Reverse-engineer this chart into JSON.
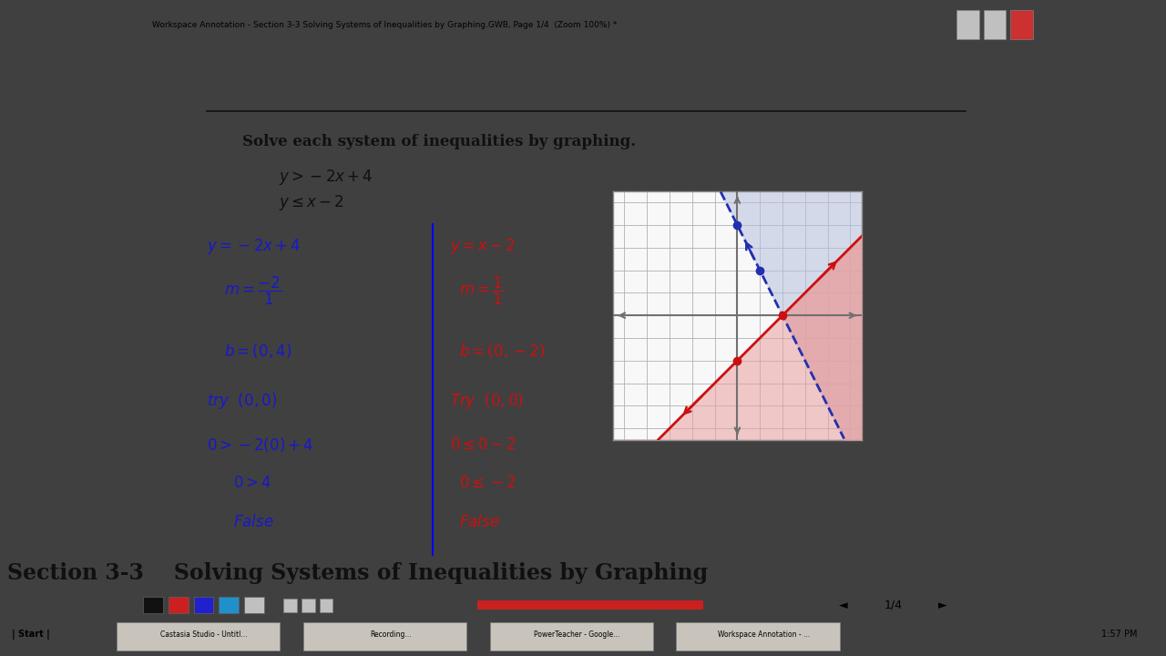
{
  "title": "Section 3-3    Solving Systems of Inequalities by Graphing",
  "subtitle": "Solve each system of inequalities by graphing.",
  "window_title": "Workspace Annotation - Section 3-3 Solving Systems of Inequalities by Graphing.GWB, Page 1/4  (Zoom 100%) *",
  "bg_outer": "#404040",
  "bg_slide": "#f0f0f0",
  "bg_titlebar": "#d4d0c8",
  "bg_taskbar": "#d4d0c8",
  "graph_bg": "#f8f8f8",
  "grid_color": "#b0b0b8",
  "axis_color": "#707070",
  "blue_shade": "#b8c0e0",
  "red_shade": "#e8a0a0",
  "dashed_color": "#2030b0",
  "solid_color": "#cc1010",
  "blue_text": "#1818cc",
  "red_text": "#cc1010",
  "black_text": "#101010",
  "graph_xlim": [
    -5,
    5
  ],
  "graph_ylim": [
    -5,
    5
  ]
}
